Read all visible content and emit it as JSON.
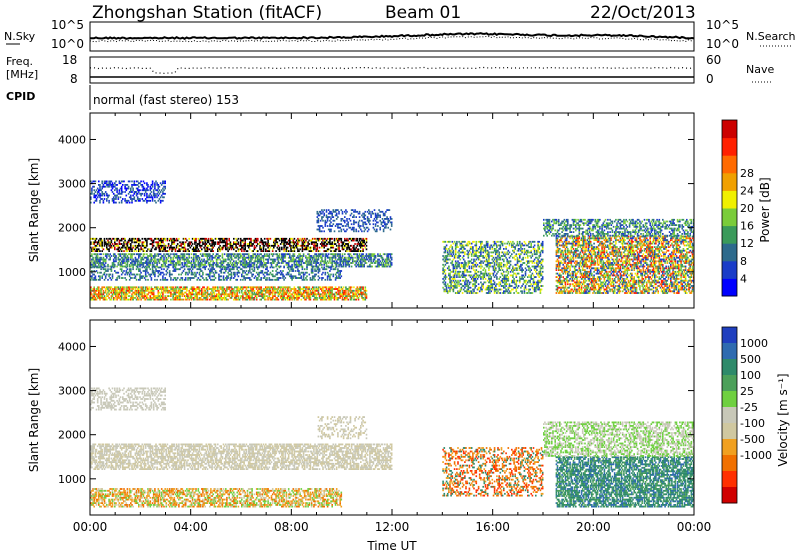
{
  "header": {
    "station": "Zhongshan Station (fitACF)",
    "beam": "Beam 01",
    "date": "22/Oct/2013"
  },
  "noise_panel": {
    "left_label": "N.Sky",
    "left_ticks": [
      "10^5",
      "10^0"
    ],
    "right_label": "N.Search",
    "right_ticks": [
      "10^5",
      "10^0"
    ]
  },
  "freq_panel": {
    "left_label_1": "Freq.",
    "left_label_2": "[MHz]",
    "left_ticks": [
      "18",
      "8"
    ],
    "right_label": "Nave",
    "right_ticks": [
      "60",
      "0"
    ]
  },
  "cpid_panel": {
    "label": "CPID",
    "text": "normal (fast stereo) 153"
  },
  "colors": {
    "power": [
      "#0000ff",
      "#1a3cc8",
      "#2d6a8c",
      "#3a9a5a",
      "#7acc3a",
      "#f0f000",
      "#f0a000",
      "#ff6a00",
      "#ff2000",
      "#cc0000"
    ],
    "velocity": [
      "#1f3fbf",
      "#2e6bb0",
      "#2e8a6a",
      "#4ca05a",
      "#6fd040",
      "#c8c8b8",
      "#d0c8a0",
      "#f0a020",
      "#f07000",
      "#ff3000",
      "#d00000"
    ]
  },
  "chart_data": [
    {
      "type": "heatmap",
      "name": "power",
      "ylabel": "Slant Range [km]",
      "yticks": [
        1000,
        2000,
        3000,
        4000
      ],
      "ylim": [
        180,
        4600
      ],
      "xticks": [
        "00:00",
        "04:00",
        "08:00",
        "12:00",
        "16:00",
        "20:00",
        "00:00"
      ],
      "xlim": [
        0,
        24
      ],
      "colorbar": {
        "label": "Power [dB]",
        "ticks": [
          4,
          8,
          12,
          16,
          20,
          24,
          28
        ]
      }
    },
    {
      "type": "heatmap",
      "name": "velocity",
      "ylabel": "Slant Range [km]",
      "yticks": [
        1000,
        2000,
        3000,
        4000
      ],
      "ylim": [
        180,
        4600
      ],
      "xticks": [
        "00:00",
        "04:00",
        "08:00",
        "12:00",
        "16:00",
        "20:00",
        "00:00"
      ],
      "xlim": [
        0,
        24
      ],
      "xlabel": "Time UT",
      "colorbar": {
        "label": "Velocity [m s⁻¹]",
        "ticks": [
          1000,
          500,
          100,
          25,
          -25,
          -100,
          -500,
          -1000
        ]
      }
    }
  ]
}
